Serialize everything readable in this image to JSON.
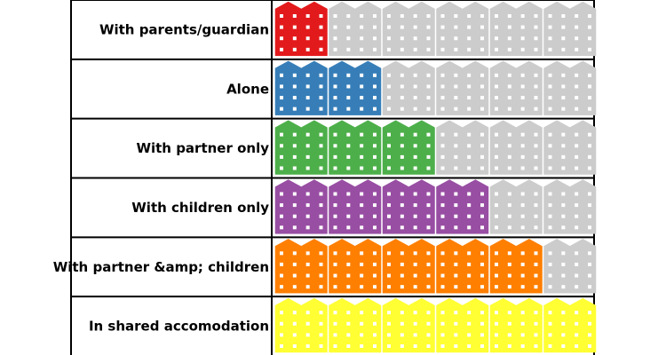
{
  "chart_data": {
    "type": "bar",
    "max_units": 6,
    "categories": [
      "With parents/guardian",
      "Alone",
      "With partner only",
      "With children only",
      "With partner &amp; children",
      "In shared accomodation"
    ],
    "values": [
      1,
      2,
      3,
      4,
      5,
      6
    ],
    "colors": [
      "#e31a1c",
      "#377eb8",
      "#4daf4a",
      "#984ea3",
      "#ff7f00",
      "#ffff33"
    ],
    "empty_color": "#cccccc",
    "window_color": "#ffffff"
  }
}
